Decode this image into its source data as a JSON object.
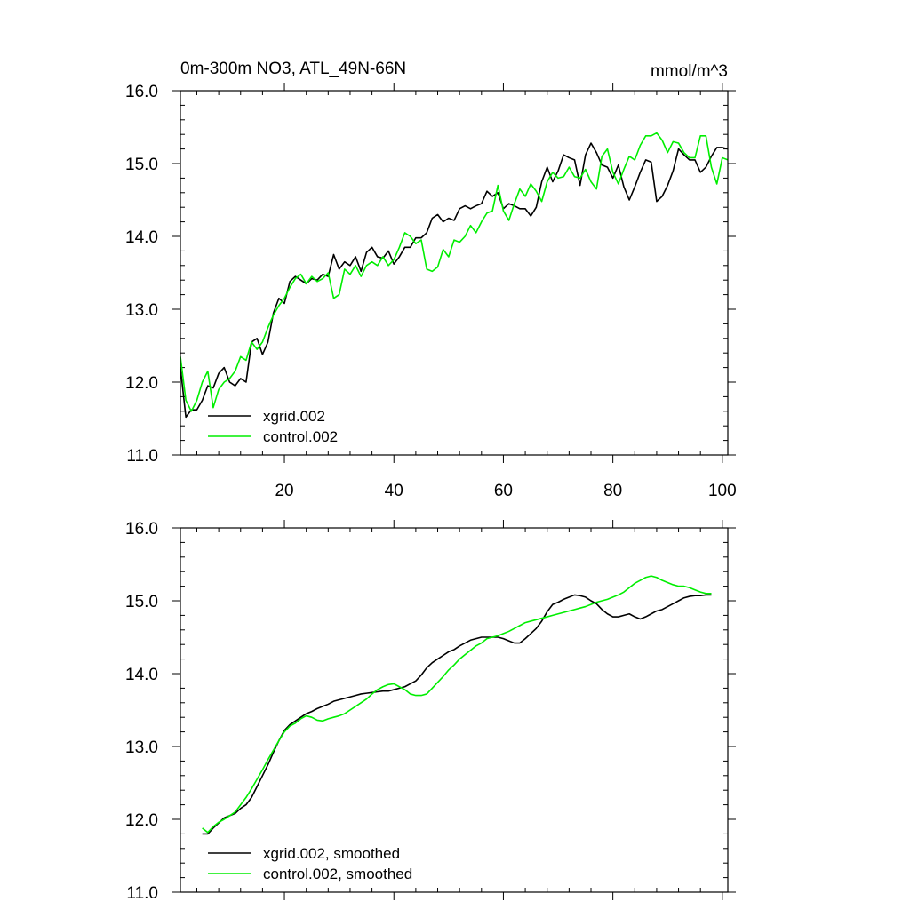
{
  "chart_data": [
    {
      "type": "line",
      "title": "0m-300m NO3, ATL_49N-66N",
      "units": "mmol/m^3",
      "xlim": [
        1,
        101
      ],
      "ylim": [
        11.0,
        16.0
      ],
      "x_ticks": [
        20,
        40,
        60,
        80,
        100
      ],
      "x_tick_labels": [
        "20",
        "40",
        "60",
        "80",
        "100"
      ],
      "y_ticks": [
        11.0,
        12.0,
        13.0,
        14.0,
        15.0,
        16.0
      ],
      "y_tick_labels": [
        "11.0",
        "12.0",
        "13.0",
        "14.0",
        "15.0",
        "16.0"
      ],
      "legend_position": "bottom-left",
      "x": [
        1,
        2,
        3,
        4,
        5,
        6,
        7,
        8,
        9,
        10,
        11,
        12,
        13,
        14,
        15,
        16,
        17,
        18,
        19,
        20,
        21,
        22,
        23,
        24,
        25,
        26,
        27,
        28,
        29,
        30,
        31,
        32,
        33,
        34,
        35,
        36,
        37,
        38,
        39,
        40,
        41,
        42,
        43,
        44,
        45,
        46,
        47,
        48,
        49,
        50,
        51,
        52,
        53,
        54,
        55,
        56,
        57,
        58,
        59,
        60,
        61,
        62,
        63,
        64,
        65,
        66,
        67,
        68,
        69,
        70,
        71,
        72,
        73,
        74,
        75,
        76,
        77,
        78,
        79,
        80,
        81,
        82,
        83,
        84,
        85,
        86,
        87,
        88,
        89,
        90,
        91,
        92,
        93,
        94,
        95,
        96,
        97,
        98,
        99,
        100,
        101
      ],
      "series": [
        {
          "name": "xgrid.002",
          "color": "#000000",
          "values": [
            12.2,
            11.52,
            11.62,
            11.62,
            11.75,
            11.95,
            11.92,
            12.12,
            12.2,
            12.0,
            11.95,
            12.05,
            12.0,
            12.55,
            12.6,
            12.38,
            12.55,
            12.95,
            13.15,
            13.08,
            13.38,
            13.45,
            13.4,
            13.35,
            13.42,
            13.4,
            13.48,
            13.45,
            13.75,
            13.55,
            13.65,
            13.6,
            13.72,
            13.52,
            13.78,
            13.85,
            13.72,
            13.7,
            13.8,
            13.62,
            13.72,
            13.85,
            13.85,
            13.98,
            13.98,
            14.05,
            14.25,
            14.3,
            14.2,
            14.25,
            14.22,
            14.38,
            14.42,
            14.38,
            14.42,
            14.45,
            14.62,
            14.55,
            14.6,
            14.38,
            14.45,
            14.42,
            14.38,
            14.38,
            14.28,
            14.4,
            14.75,
            14.95,
            14.75,
            14.9,
            15.12,
            15.08,
            15.05,
            14.7,
            15.12,
            15.28,
            15.15,
            14.98,
            14.95,
            14.8,
            14.98,
            14.68,
            14.5,
            14.68,
            14.88,
            15.05,
            15.02,
            14.48,
            14.55,
            14.7,
            14.9,
            15.2,
            15.12,
            15.05,
            15.05,
            14.88,
            14.95,
            15.1,
            15.22,
            15.22,
            15.2
          ]
        },
        {
          "name": "control.002",
          "color": "#00ee00",
          "values": [
            12.35,
            11.75,
            11.6,
            11.75,
            12.0,
            12.15,
            11.65,
            11.9,
            12.0,
            12.05,
            12.15,
            12.35,
            12.3,
            12.55,
            12.45,
            12.55,
            12.75,
            12.92,
            13.05,
            13.15,
            13.3,
            13.42,
            13.48,
            13.35,
            13.45,
            13.38,
            13.42,
            13.5,
            13.15,
            13.2,
            13.55,
            13.48,
            13.6,
            13.45,
            13.6,
            13.65,
            13.6,
            13.72,
            13.6,
            13.68,
            13.85,
            14.05,
            14.0,
            13.9,
            13.95,
            13.55,
            13.52,
            13.58,
            13.82,
            13.72,
            13.95,
            13.92,
            14.0,
            14.15,
            14.05,
            14.2,
            14.32,
            14.35,
            14.7,
            14.35,
            14.22,
            14.45,
            14.65,
            14.55,
            14.72,
            14.62,
            14.48,
            14.75,
            14.88,
            14.8,
            14.82,
            14.95,
            14.82,
            14.8,
            14.92,
            14.75,
            14.65,
            15.1,
            15.2,
            14.88,
            14.72,
            14.92,
            15.1,
            15.05,
            15.25,
            15.38,
            15.38,
            15.42,
            15.32,
            15.15,
            15.3,
            15.28,
            15.15,
            15.08,
            15.08,
            15.38,
            15.38,
            14.95,
            14.72,
            15.08,
            15.05
          ]
        }
      ]
    },
    {
      "type": "line",
      "title": "",
      "units": "",
      "xlim": [
        1,
        101
      ],
      "ylim": [
        11.0,
        16.0
      ],
      "x_ticks": [
        20,
        40,
        60,
        80,
        100
      ],
      "x_tick_labels": [],
      "y_ticks": [
        11.0,
        12.0,
        13.0,
        14.0,
        15.0,
        16.0
      ],
      "y_tick_labels": [
        "11.0",
        "12.0",
        "13.0",
        "14.0",
        "15.0",
        "16.0"
      ],
      "legend_position": "bottom-left",
      "x": [
        5,
        6,
        7,
        8,
        9,
        10,
        11,
        12,
        13,
        14,
        15,
        16,
        17,
        18,
        19,
        20,
        21,
        22,
        23,
        24,
        25,
        26,
        27,
        28,
        29,
        30,
        31,
        32,
        33,
        34,
        35,
        36,
        37,
        38,
        39,
        40,
        41,
        42,
        43,
        44,
        45,
        46,
        47,
        48,
        49,
        50,
        51,
        52,
        53,
        54,
        55,
        56,
        57,
        58,
        59,
        60,
        61,
        62,
        63,
        64,
        65,
        66,
        67,
        68,
        69,
        70,
        71,
        72,
        73,
        74,
        75,
        76,
        77,
        78,
        79,
        80,
        81,
        82,
        83,
        84,
        85,
        86,
        87,
        88,
        89,
        90,
        91,
        92,
        93,
        94,
        95,
        96,
        97,
        98
      ],
      "series": [
        {
          "name": "xgrid.002, smoothed",
          "color": "#000000",
          "values": [
            11.8,
            11.8,
            11.88,
            11.95,
            12.02,
            12.05,
            12.08,
            12.15,
            12.2,
            12.3,
            12.45,
            12.6,
            12.75,
            12.92,
            13.08,
            13.22,
            13.3,
            13.35,
            13.4,
            13.45,
            13.48,
            13.52,
            13.55,
            13.58,
            13.62,
            13.64,
            13.66,
            13.68,
            13.7,
            13.72,
            13.73,
            13.74,
            13.75,
            13.76,
            13.76,
            13.78,
            13.8,
            13.82,
            13.86,
            13.9,
            13.98,
            14.08,
            14.15,
            14.2,
            14.25,
            14.3,
            14.33,
            14.38,
            14.42,
            14.46,
            14.48,
            14.5,
            14.5,
            14.5,
            14.5,
            14.48,
            14.45,
            14.42,
            14.42,
            14.48,
            14.55,
            14.62,
            14.72,
            14.85,
            14.95,
            14.98,
            15.02,
            15.05,
            15.08,
            15.07,
            15.05,
            15.0,
            14.96,
            14.88,
            14.82,
            14.78,
            14.78,
            14.8,
            14.82,
            14.78,
            14.75,
            14.78,
            14.82,
            14.86,
            14.88,
            14.92,
            14.96,
            15.0,
            15.04,
            15.06,
            15.07,
            15.07,
            15.08,
            15.08
          ]
        },
        {
          "name": "control.002, smoothed",
          "color": "#00ee00",
          "values": [
            11.88,
            11.82,
            11.9,
            11.96,
            12.0,
            12.05,
            12.1,
            12.2,
            12.3,
            12.42,
            12.55,
            12.68,
            12.82,
            12.95,
            13.08,
            13.2,
            13.28,
            13.32,
            13.38,
            13.42,
            13.4,
            13.36,
            13.35,
            13.38,
            13.4,
            13.42,
            13.45,
            13.5,
            13.55,
            13.6,
            13.65,
            13.72,
            13.78,
            13.82,
            13.85,
            13.86,
            13.82,
            13.78,
            13.72,
            13.7,
            13.7,
            13.72,
            13.8,
            13.88,
            13.96,
            14.05,
            14.12,
            14.2,
            14.26,
            14.32,
            14.38,
            14.42,
            14.48,
            14.5,
            14.52,
            14.55,
            14.58,
            14.62,
            14.66,
            14.7,
            14.72,
            14.74,
            14.76,
            14.78,
            14.8,
            14.82,
            14.84,
            14.86,
            14.88,
            14.9,
            14.92,
            14.95,
            14.98,
            15.0,
            15.02,
            15.05,
            15.08,
            15.12,
            15.18,
            15.24,
            15.28,
            15.32,
            15.34,
            15.32,
            15.28,
            15.25,
            15.22,
            15.2,
            15.2,
            15.18,
            15.15,
            15.12,
            15.1,
            15.1
          ]
        }
      ]
    }
  ]
}
